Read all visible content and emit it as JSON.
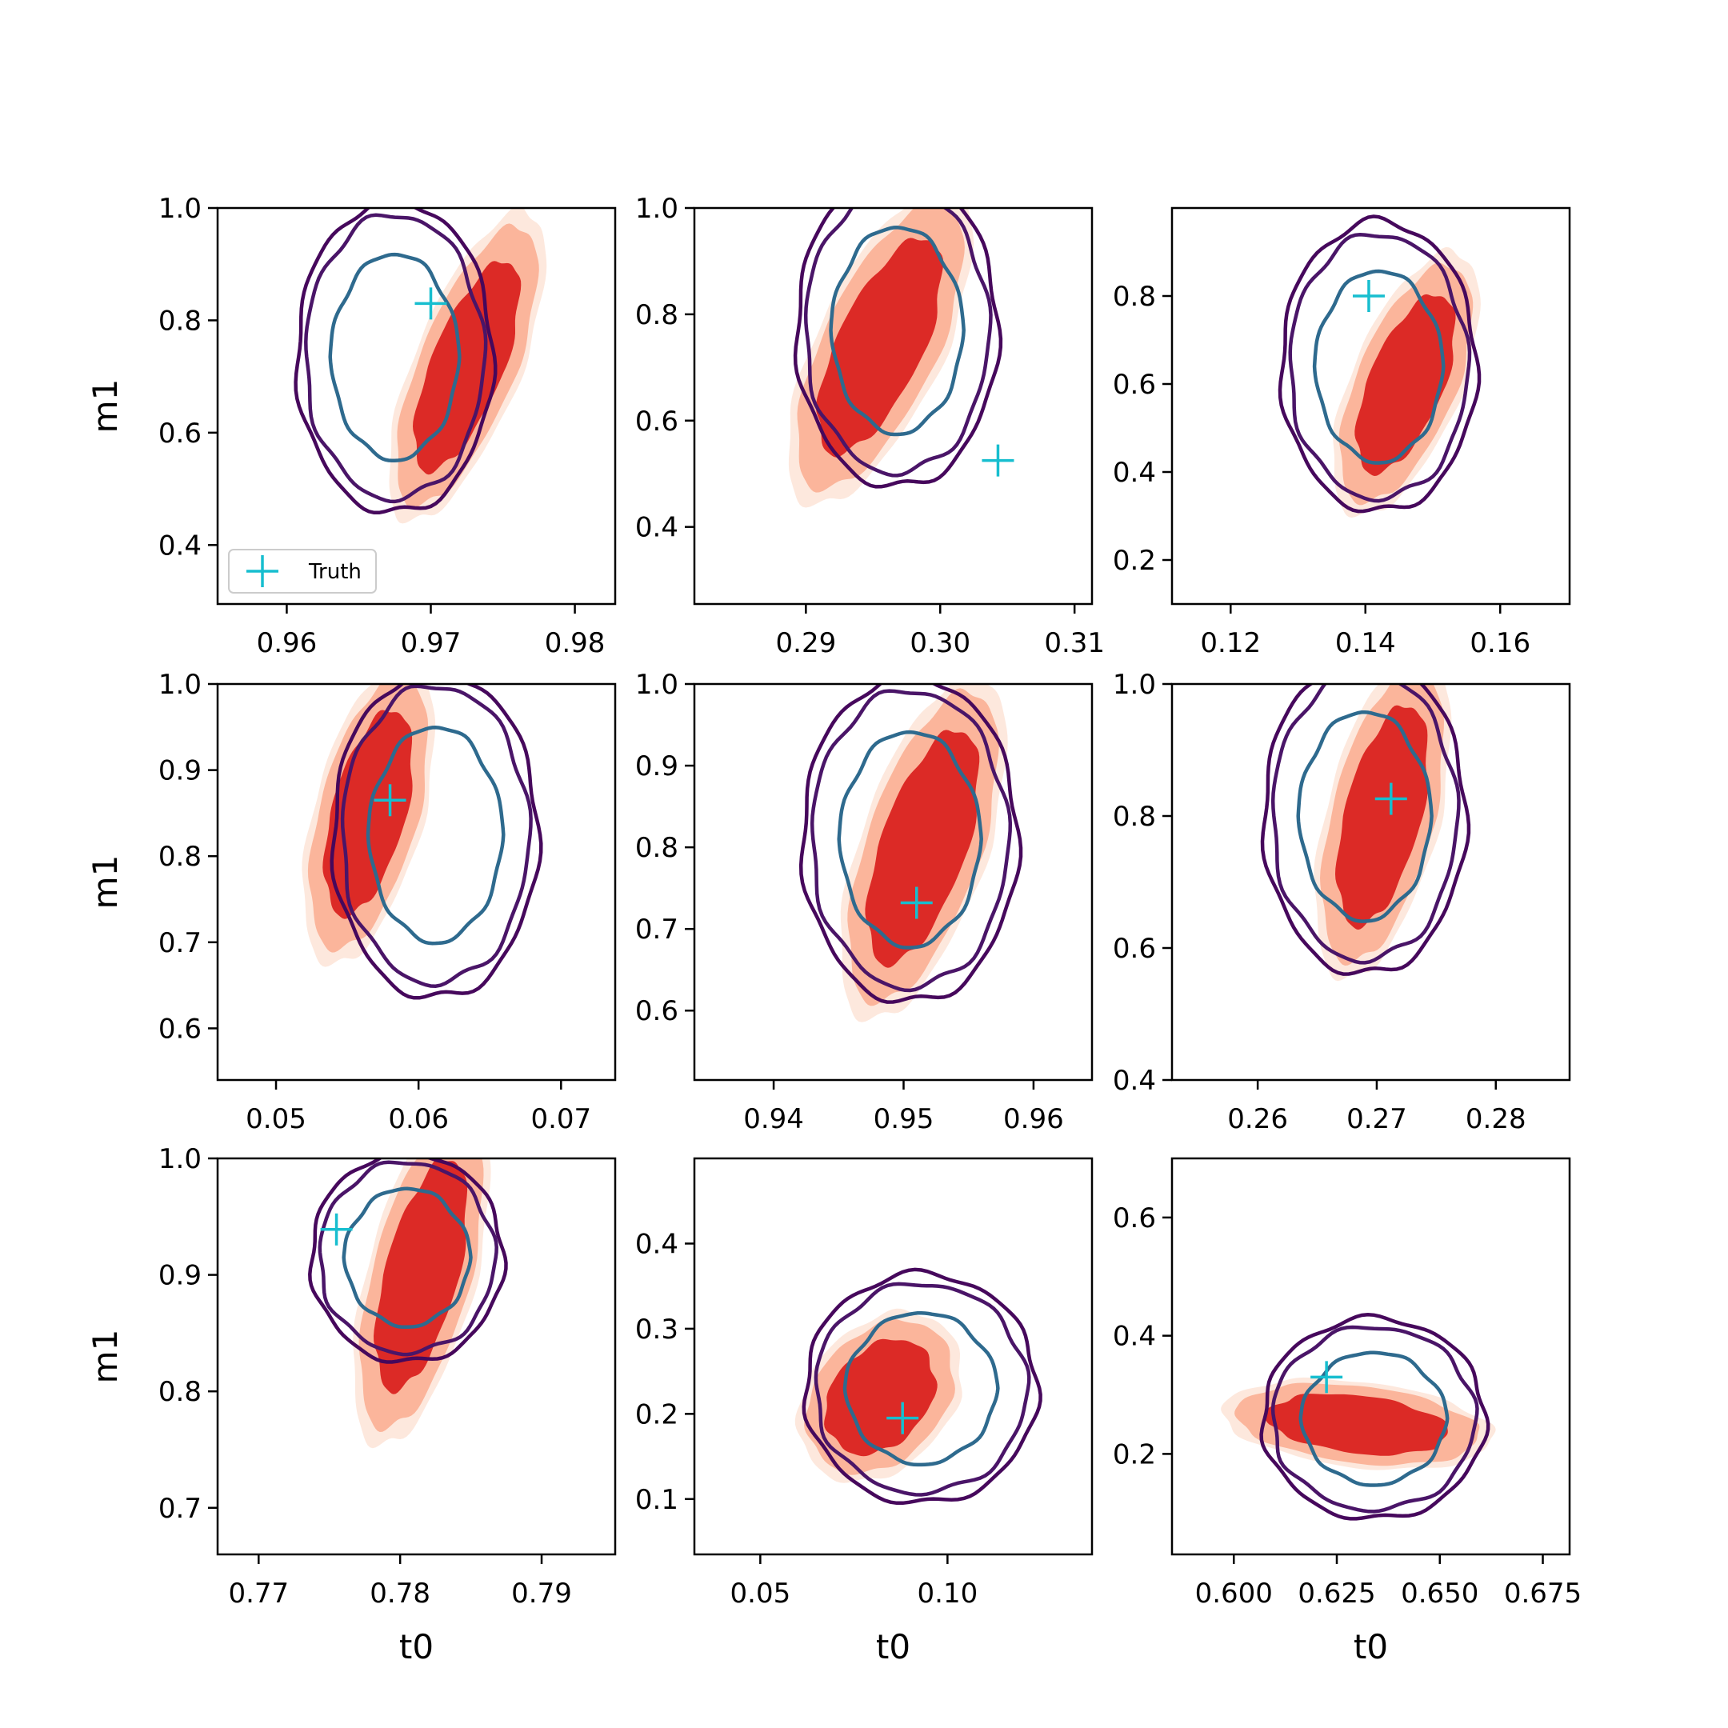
{
  "figure": {
    "colors": {
      "fill_outer": "#fde8dd",
      "fill_mid": "#fbb59b",
      "fill_inner": "#dc2a26",
      "contour_outer": "#46085c",
      "contour_mid": "#4a1568",
      "contour_inner": "#2e6a8e",
      "truth_marker": "#17becf",
      "axes": "#000000"
    }
  },
  "chart_data": [
    {
      "type": "contour",
      "row": 0,
      "col": 0,
      "xlabel": "",
      "ylabel": "m1",
      "xlim": [
        0.9552,
        0.9828
      ],
      "ylim": [
        0.295,
        1.0
      ],
      "xticks": [
        0.96,
        0.97,
        0.98
      ],
      "xtick_labels": [
        "0.96",
        "0.97",
        "0.98"
      ],
      "yticks": [
        0.4,
        0.6,
        0.8,
        1.0
      ],
      "ytick_labels": [
        "0.4",
        "0.6",
        "0.8",
        "1.0"
      ],
      "filled": {
        "cx": 0.9725,
        "cy": 0.718,
        "rx": 0.0034,
        "ry": 0.235,
        "tilt": -0.95
      },
      "contours": {
        "cx": 0.9675,
        "cy": 0.735,
        "rx": 0.0068,
        "ry": 0.278,
        "tilt": 0.0
      },
      "truth": {
        "x": 0.97,
        "y": 0.83
      },
      "legend": {
        "label": "Truth",
        "position": "lower-left"
      }
    },
    {
      "type": "contour",
      "row": 0,
      "col": 1,
      "xlabel": "",
      "ylabel": "",
      "xlim": [
        0.2817,
        0.3113
      ],
      "ylim": [
        0.255,
        1.0
      ],
      "xticks": [
        0.29,
        0.3,
        0.31
      ],
      "xtick_labels": [
        "0.29",
        "0.30",
        "0.31"
      ],
      "yticks": [
        0.4,
        0.6,
        0.8,
        1.0
      ],
      "ytick_labels": [
        "0.4",
        "0.6",
        "0.8",
        "1.0"
      ],
      "filled": {
        "cx": 0.2955,
        "cy": 0.74,
        "rx": 0.0044,
        "ry": 0.255,
        "tilt": -0.9
      },
      "contours": {
        "cx": 0.2968,
        "cy": 0.77,
        "rx": 0.0075,
        "ry": 0.295,
        "tilt": 0.0
      },
      "truth": {
        "x": 0.3043,
        "y": 0.525
      }
    },
    {
      "type": "contour",
      "row": 0,
      "col": 2,
      "xlabel": "",
      "ylabel": "",
      "xlim": [
        0.1113,
        0.1703
      ],
      "ylim": [
        0.1,
        1.0
      ],
      "xticks": [
        0.12,
        0.14,
        0.16
      ],
      "xtick_labels": [
        "0.12",
        "0.14",
        "0.16"
      ],
      "yticks": [
        0.2,
        0.4,
        0.6,
        0.8
      ],
      "ytick_labels": [
        "0.2",
        "0.4",
        "0.6",
        "0.8"
      ],
      "filled": {
        "cx": 0.146,
        "cy": 0.6,
        "rx": 0.0075,
        "ry": 0.255,
        "tilt": -0.75
      },
      "contours": {
        "cx": 0.142,
        "cy": 0.64,
        "rx": 0.0145,
        "ry": 0.33,
        "tilt": 0.0
      },
      "truth": {
        "x": 0.1405,
        "y": 0.8
      }
    },
    {
      "type": "contour",
      "row": 1,
      "col": 0,
      "xlabel": "",
      "ylabel": "m1",
      "xlim": [
        0.0459,
        0.0738
      ],
      "ylim": [
        0.54,
        1.0
      ],
      "xticks": [
        0.05,
        0.06,
        0.07
      ],
      "xtick_labels": [
        "0.05",
        "0.06",
        "0.07"
      ],
      "yticks": [
        0.6,
        0.7,
        0.8,
        0.9,
        1.0
      ],
      "ytick_labels": [
        "0.6",
        "0.7",
        "0.8",
        "0.9",
        "1.0"
      ],
      "filled": {
        "cx": 0.0565,
        "cy": 0.85,
        "rx": 0.0034,
        "ry": 0.15,
        "tilt": -0.6
      },
      "contours": {
        "cx": 0.0612,
        "cy": 0.825,
        "rx": 0.0072,
        "ry": 0.19,
        "tilt": 0.0
      },
      "truth": {
        "x": 0.058,
        "y": 0.865
      }
    },
    {
      "type": "contour",
      "row": 1,
      "col": 1,
      "xlabel": "",
      "ylabel": "",
      "xlim": [
        0.9339,
        0.9645
      ],
      "ylim": [
        0.515,
        1.0
      ],
      "xticks": [
        0.94,
        0.95,
        0.96
      ],
      "xtick_labels": [
        "0.94",
        "0.95",
        "0.96"
      ],
      "yticks": [
        0.6,
        0.7,
        0.8,
        0.9,
        1.0
      ],
      "ytick_labels": [
        "0.6",
        "0.7",
        "0.8",
        "0.9",
        "1.0"
      ],
      "filled": {
        "cx": 0.9515,
        "cy": 0.8,
        "rx": 0.0044,
        "ry": 0.18,
        "tilt": -0.75
      },
      "contours": {
        "cx": 0.9505,
        "cy": 0.81,
        "rx": 0.0083,
        "ry": 0.2,
        "tilt": 0.0
      },
      "truth": {
        "x": 0.951,
        "y": 0.732
      }
    },
    {
      "type": "contour",
      "row": 1,
      "col": 2,
      "xlabel": "",
      "ylabel": "",
      "xlim": [
        0.2528,
        0.2862
      ],
      "ylim": [
        0.4,
        1.0
      ],
      "xticks": [
        0.26,
        0.27,
        0.28
      ],
      "xtick_labels": [
        "0.26",
        "0.27",
        "0.28"
      ],
      "yticks": [
        0.4,
        0.6,
        0.8,
        1.0
      ],
      "ytick_labels": [
        "0.4",
        "0.6",
        "0.8",
        "1.0"
      ],
      "filled": {
        "cx": 0.2705,
        "cy": 0.8,
        "rx": 0.0042,
        "ry": 0.21,
        "tilt": -0.6
      },
      "contours": {
        "cx": 0.269,
        "cy": 0.8,
        "rx": 0.0085,
        "ry": 0.24,
        "tilt": 0.0
      },
      "truth": {
        "x": 0.2712,
        "y": 0.826
      }
    },
    {
      "type": "contour",
      "row": 2,
      "col": 0,
      "xlabel": "t0",
      "ylabel": "m1",
      "xlim": [
        0.7671,
        0.7952
      ],
      "ylim": [
        0.66,
        1.0
      ],
      "xticks": [
        0.77,
        0.78,
        0.79
      ],
      "xtick_labels": [
        "0.77",
        "0.78",
        "0.79"
      ],
      "yticks": [
        0.7,
        0.8,
        0.9,
        1.0
      ],
      "ytick_labels": [
        "0.7",
        "0.8",
        "0.9",
        "1.0"
      ],
      "filled": {
        "cx": 0.7815,
        "cy": 0.9,
        "rx": 0.0034,
        "ry": 0.125,
        "tilt": -0.7
      },
      "contours": {
        "cx": 0.7805,
        "cy": 0.915,
        "rx": 0.0068,
        "ry": 0.09,
        "tilt": 0.0
      },
      "truth": {
        "x": 0.7755,
        "y": 0.939
      }
    },
    {
      "type": "contour",
      "row": 2,
      "col": 1,
      "xlabel": "t0",
      "ylabel": "",
      "xlim": [
        0.0324,
        0.1386
      ],
      "ylim": [
        0.035,
        0.5
      ],
      "xticks": [
        0.05,
        0.1
      ],
      "xtick_labels": [
        "0.05",
        "0.10"
      ],
      "yticks": [
        0.1,
        0.2,
        0.3,
        0.4
      ],
      "ytick_labels": [
        "0.1",
        "0.2",
        "0.3",
        "0.4"
      ],
      "filled": {
        "cx": 0.082,
        "cy": 0.22,
        "rx": 0.018,
        "ry": 0.085,
        "tilt": -0.3
      },
      "contours": {
        "cx": 0.093,
        "cy": 0.23,
        "rx": 0.031,
        "ry": 0.135,
        "tilt": 0.0
      },
      "truth": {
        "x": 0.088,
        "y": 0.195
      }
    },
    {
      "type": "contour",
      "row": 2,
      "col": 2,
      "xlabel": "t0",
      "ylabel": "",
      "xlim": [
        0.585,
        0.6815
      ],
      "ylim": [
        0.03,
        0.7
      ],
      "xticks": [
        0.6,
        0.625,
        0.65,
        0.675
      ],
      "xtick_labels": [
        "0.600",
        "0.625",
        "0.650",
        "0.675"
      ],
      "yticks": [
        0.2,
        0.4,
        0.6
      ],
      "ytick_labels": [
        "0.2",
        "0.4",
        "0.6"
      ],
      "filled": {
        "cx": 0.63,
        "cy": 0.25,
        "rx": 0.027,
        "ry": 0.065,
        "tilt": 0.3
      },
      "contours": {
        "cx": 0.634,
        "cy": 0.26,
        "rx": 0.027,
        "ry": 0.17,
        "tilt": 0.0
      },
      "truth": {
        "x": 0.6225,
        "y": 0.33
      }
    }
  ]
}
